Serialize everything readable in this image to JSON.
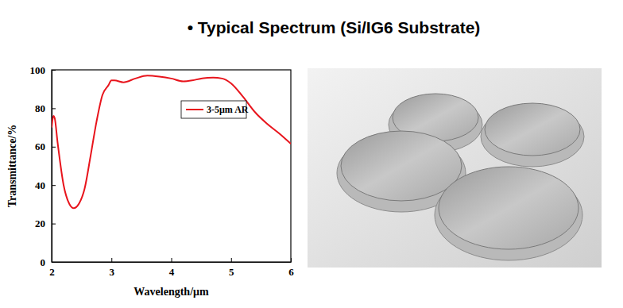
{
  "chart_data": {
    "type": "line",
    "title": "• Typical Spectrum (Si/IG6 Substrate)",
    "x_label": "Wavelength/μm",
    "y_label": "Transmittance/%",
    "x": [
      2.0,
      2.03,
      2.05,
      2.1,
      2.2,
      2.3,
      2.37,
      2.45,
      2.55,
      2.65,
      2.75,
      2.85,
      2.95,
      3.0,
      3.05,
      3.2,
      3.4,
      3.6,
      3.8,
      4.0,
      4.2,
      4.35,
      4.5,
      4.7,
      4.85,
      5.0,
      5.2,
      5.4,
      5.6,
      5.8,
      6.0
    ],
    "series": [
      {
        "name": "3-5μm AR",
        "color": "#e8141c",
        "values": [
          70,
          76,
          75,
          62,
          40,
          30,
          28,
          30,
          38,
          55,
          73,
          87,
          92,
          94.5,
          94.5,
          93.5,
          95.5,
          97,
          96.5,
          95.5,
          94,
          94.5,
          95.5,
          96,
          95.5,
          93,
          86,
          78,
          72,
          67,
          61.5
        ]
      }
    ],
    "xlim": [
      2,
      6
    ],
    "xticks": [
      2,
      3,
      4,
      5,
      6
    ],
    "ylim": [
      0,
      100
    ],
    "yticks": [
      0,
      20,
      40,
      60,
      80,
      100
    ],
    "grid": false,
    "legend": "upper right"
  }
}
